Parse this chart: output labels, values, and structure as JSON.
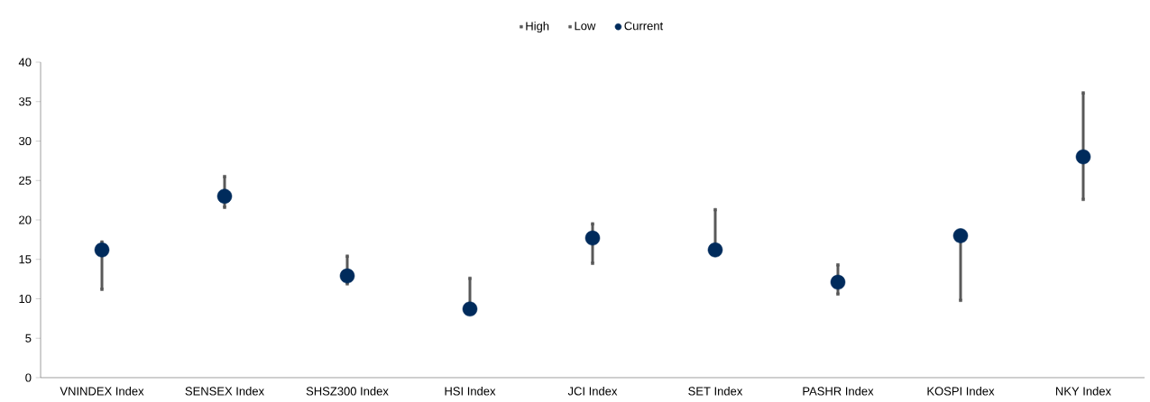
{
  "chart_data": {
    "type": "scatter",
    "categories": [
      "VNINDEX Index",
      "SENSEX Index",
      "SHSZ300 Index",
      "HSI Index",
      "JCI Index",
      "SET Index",
      "PASHR Index",
      "KOSPI Index",
      "NKY Index"
    ],
    "series": [
      {
        "name": "High",
        "color": "#595959",
        "values": [
          17.2,
          25.5,
          15.4,
          12.6,
          19.5,
          21.3,
          14.3,
          null,
          36.1
        ]
      },
      {
        "name": "Low",
        "color": "#595959",
        "values": [
          11.2,
          21.6,
          11.9,
          null,
          14.5,
          null,
          10.6,
          9.8,
          22.6
        ]
      },
      {
        "name": "Current",
        "marker": "circle",
        "color": "#002b5c",
        "values": [
          16.2,
          23.0,
          12.9,
          8.7,
          17.7,
          16.2,
          12.1,
          18.0,
          28.0
        ]
      }
    ],
    "ylim": [
      0,
      40
    ],
    "yticks": [
      0,
      5,
      10,
      15,
      20,
      25,
      30,
      35,
      40
    ],
    "grid": false,
    "legend": "top"
  }
}
